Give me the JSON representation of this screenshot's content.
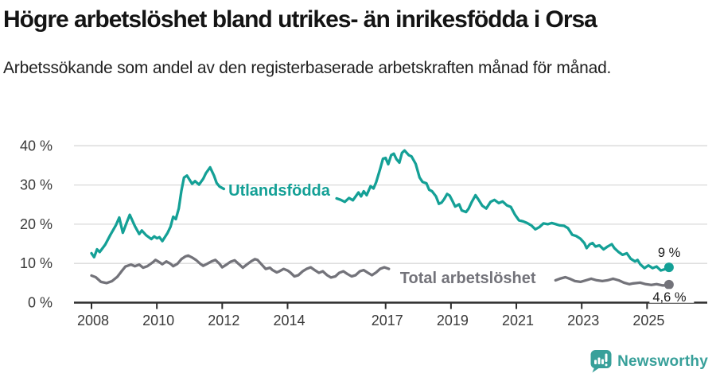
{
  "header": {
    "title": "Högre arbetslöshet bland utrikes- än inrikesfödda i Orsa",
    "subtitle": "Arbetssökande som andel av den registerbaserade arbetskraften månad för månad."
  },
  "chart_data": {
    "type": "line",
    "title": "Högre arbetslöshet bland utrikes- än inrikesfödda i Orsa",
    "subtitle": "Arbetssökande som andel av den registerbaserade arbetskraften månad för månad.",
    "unit": "%",
    "grid": true,
    "legend_position": "inline-line-labels",
    "xlim": [
      2007.5,
      2026.3
    ],
    "ylim": [
      0,
      42
    ],
    "x_ticks": [
      {
        "year": 2008,
        "label": "2008"
      },
      {
        "year": 2010,
        "label": "2010"
      },
      {
        "year": 2012,
        "label": "2012"
      },
      {
        "year": 2014,
        "label": "2014"
      },
      {
        "year": 2017,
        "label": "2017"
      },
      {
        "year": 2019,
        "label": "2019"
      },
      {
        "year": 2021,
        "label": "2021"
      },
      {
        "year": 2023,
        "label": "2023"
      },
      {
        "year": 2025,
        "label": "2025"
      }
    ],
    "y_ticks": [
      {
        "value": 0,
        "label": "0 %"
      },
      {
        "value": 10,
        "label": "10 %"
      },
      {
        "value": 20,
        "label": "20 %"
      },
      {
        "value": 30,
        "label": "30 %"
      },
      {
        "value": 40,
        "label": "40 %"
      }
    ],
    "colors": {
      "foreign_born": "#14a096",
      "total": "#73737a",
      "axis": "#2d2d2d",
      "gridline": "#d9d9d9",
      "annotation": "#1a1a1a"
    },
    "series": [
      {
        "id": "utlandsfodda",
        "name": "Utlandsfödda",
        "color": "#14a096",
        "line_label": {
          "text": "Utlandsfödda",
          "year": 2012.19,
          "value": 27.3
        },
        "end_label": {
          "text": "9 %",
          "year": 2025.33,
          "value": 11.7,
          "bg": false
        },
        "end_dot": true,
        "segments": [
          [
            [
              2008.0,
              12.6
            ],
            [
              2008.08,
              11.6
            ],
            [
              2008.17,
              13.6
            ],
            [
              2008.25,
              12.9
            ],
            [
              2008.42,
              14.8
            ],
            [
              2008.58,
              17.3
            ],
            [
              2008.75,
              19.8
            ],
            [
              2008.85,
              21.7
            ],
            [
              2008.96,
              17.8
            ],
            [
              2009.08,
              20.5
            ],
            [
              2009.17,
              22.4
            ],
            [
              2009.33,
              19.5
            ],
            [
              2009.46,
              17.5
            ],
            [
              2009.54,
              18.4
            ],
            [
              2009.67,
              17.2
            ],
            [
              2009.83,
              16.2
            ],
            [
              2009.92,
              16.9
            ],
            [
              2010.0,
              16.4
            ],
            [
              2010.08,
              16.7
            ],
            [
              2010.17,
              15.7
            ],
            [
              2010.33,
              17.8
            ],
            [
              2010.42,
              19.4
            ],
            [
              2010.5,
              21.9
            ],
            [
              2010.58,
              21.3
            ],
            [
              2010.67,
              24.0
            ],
            [
              2010.75,
              28.5
            ],
            [
              2010.83,
              31.9
            ],
            [
              2010.92,
              32.4
            ],
            [
              2011.08,
              30.3
            ],
            [
              2011.17,
              31.0
            ],
            [
              2011.29,
              30.1
            ],
            [
              2011.42,
              31.6
            ],
            [
              2011.5,
              33.0
            ],
            [
              2011.63,
              34.5
            ],
            [
              2011.75,
              32.4
            ],
            [
              2011.83,
              30.5
            ],
            [
              2011.92,
              29.6
            ],
            [
              2012.05,
              29.0
            ]
          ],
          [
            [
              2015.5,
              26.6
            ],
            [
              2015.63,
              26.2
            ],
            [
              2015.75,
              25.7
            ],
            [
              2015.88,
              26.7
            ],
            [
              2016.0,
              26.1
            ],
            [
              2016.17,
              28.1
            ],
            [
              2016.25,
              27.1
            ],
            [
              2016.33,
              28.4
            ],
            [
              2016.42,
              27.4
            ],
            [
              2016.54,
              29.7
            ],
            [
              2016.63,
              29.1
            ],
            [
              2016.71,
              30.7
            ],
            [
              2016.83,
              34.0
            ],
            [
              2016.92,
              36.7
            ],
            [
              2017.0,
              36.9
            ],
            [
              2017.08,
              35.3
            ],
            [
              2017.17,
              37.6
            ],
            [
              2017.25,
              38.0
            ],
            [
              2017.33,
              36.6
            ],
            [
              2017.42,
              35.7
            ],
            [
              2017.5,
              38.2
            ],
            [
              2017.58,
              38.8
            ],
            [
              2017.71,
              37.6
            ],
            [
              2017.79,
              37.3
            ],
            [
              2017.92,
              35.4
            ],
            [
              2018.04,
              31.9
            ],
            [
              2018.13,
              30.8
            ],
            [
              2018.25,
              30.4
            ],
            [
              2018.33,
              28.8
            ],
            [
              2018.42,
              28.4
            ],
            [
              2018.54,
              27.1
            ],
            [
              2018.63,
              25.2
            ],
            [
              2018.71,
              25.5
            ],
            [
              2018.79,
              26.4
            ],
            [
              2018.88,
              27.7
            ],
            [
              2018.96,
              27.3
            ],
            [
              2019.04,
              26.0
            ],
            [
              2019.13,
              24.5
            ],
            [
              2019.25,
              25.1
            ],
            [
              2019.33,
              23.5
            ],
            [
              2019.46,
              23.1
            ],
            [
              2019.54,
              24.0
            ],
            [
              2019.63,
              25.6
            ],
            [
              2019.75,
              27.4
            ],
            [
              2019.83,
              26.4
            ],
            [
              2019.96,
              24.7
            ],
            [
              2020.08,
              24.0
            ],
            [
              2020.21,
              25.7
            ],
            [
              2020.33,
              26.2
            ],
            [
              2020.46,
              25.4
            ],
            [
              2020.58,
              25.8
            ],
            [
              2020.71,
              24.8
            ],
            [
              2020.83,
              24.4
            ],
            [
              2020.96,
              22.4
            ],
            [
              2021.08,
              21.0
            ],
            [
              2021.21,
              20.7
            ],
            [
              2021.33,
              20.3
            ],
            [
              2021.46,
              19.7
            ],
            [
              2021.58,
              18.7
            ],
            [
              2021.71,
              19.3
            ],
            [
              2021.83,
              20.2
            ],
            [
              2021.96,
              20.0
            ],
            [
              2022.08,
              20.3
            ],
            [
              2022.21,
              20.0
            ],
            [
              2022.33,
              19.7
            ],
            [
              2022.46,
              19.6
            ],
            [
              2022.58,
              19.0
            ],
            [
              2022.71,
              17.3
            ],
            [
              2022.83,
              17.0
            ],
            [
              2022.96,
              16.3
            ],
            [
              2023.08,
              15.2
            ],
            [
              2023.15,
              13.9
            ],
            [
              2023.25,
              14.9
            ],
            [
              2023.33,
              15.2
            ],
            [
              2023.42,
              14.3
            ],
            [
              2023.54,
              14.6
            ],
            [
              2023.67,
              13.6
            ],
            [
              2023.79,
              14.3
            ],
            [
              2023.92,
              14.9
            ],
            [
              2024.0,
              13.9
            ],
            [
              2024.13,
              12.9
            ],
            [
              2024.25,
              12.2
            ],
            [
              2024.38,
              12.6
            ],
            [
              2024.5,
              11.2
            ],
            [
              2024.63,
              10.5
            ],
            [
              2024.71,
              10.9
            ],
            [
              2024.79,
              9.8
            ],
            [
              2024.92,
              8.8
            ],
            [
              2025.04,
              9.5
            ],
            [
              2025.17,
              8.8
            ],
            [
              2025.29,
              9.2
            ],
            [
              2025.42,
              8.2
            ],
            [
              2025.54,
              8.5
            ],
            [
              2025.67,
              9.0
            ]
          ]
        ]
      },
      {
        "id": "total-arbetsloshet",
        "name": "Total arbetslöshet",
        "color": "#73737a",
        "line_label": {
          "text": "Total arbetslöshet",
          "year": 2017.44,
          "value": 5.0
        },
        "end_label": {
          "text": "4,6 %",
          "year": 2025.17,
          "value": 0.35,
          "bg": true
        },
        "end_dot": true,
        "segments": [
          [
            [
              2008.0,
              6.9
            ],
            [
              2008.13,
              6.5
            ],
            [
              2008.29,
              5.3
            ],
            [
              2008.46,
              5.0
            ],
            [
              2008.63,
              5.5
            ],
            [
              2008.79,
              6.6
            ],
            [
              2008.92,
              8.0
            ],
            [
              2009.04,
              9.2
            ],
            [
              2009.21,
              9.7
            ],
            [
              2009.33,
              9.3
            ],
            [
              2009.46,
              9.7
            ],
            [
              2009.58,
              8.9
            ],
            [
              2009.71,
              9.3
            ],
            [
              2009.88,
              10.3
            ],
            [
              2009.96,
              10.9
            ],
            [
              2010.08,
              10.3
            ],
            [
              2010.17,
              9.8
            ],
            [
              2010.29,
              10.5
            ],
            [
              2010.42,
              9.9
            ],
            [
              2010.5,
              9.3
            ],
            [
              2010.63,
              9.9
            ],
            [
              2010.75,
              11.1
            ],
            [
              2010.88,
              11.8
            ],
            [
              2010.96,
              12.0
            ],
            [
              2011.08,
              11.5
            ],
            [
              2011.21,
              10.8
            ],
            [
              2011.33,
              9.9
            ],
            [
              2011.42,
              9.4
            ],
            [
              2011.54,
              9.9
            ],
            [
              2011.67,
              10.5
            ],
            [
              2011.79,
              10.9
            ],
            [
              2011.92,
              9.9
            ],
            [
              2012.0,
              9.0
            ],
            [
              2012.13,
              9.7
            ],
            [
              2012.25,
              10.4
            ],
            [
              2012.38,
              10.8
            ],
            [
              2012.5,
              9.9
            ],
            [
              2012.63,
              8.9
            ],
            [
              2012.75,
              9.7
            ],
            [
              2012.88,
              10.5
            ],
            [
              2013.0,
              11.1
            ],
            [
              2013.08,
              10.9
            ],
            [
              2013.21,
              9.7
            ],
            [
              2013.33,
              8.6
            ],
            [
              2013.46,
              8.9
            ],
            [
              2013.54,
              8.3
            ],
            [
              2013.67,
              7.7
            ],
            [
              2013.75,
              8.0
            ],
            [
              2013.88,
              8.6
            ],
            [
              2014.0,
              8.2
            ],
            [
              2014.08,
              7.7
            ],
            [
              2014.21,
              6.7
            ],
            [
              2014.33,
              7.0
            ],
            [
              2014.46,
              8.0
            ],
            [
              2014.58,
              8.6
            ],
            [
              2014.71,
              9.0
            ],
            [
              2014.83,
              8.3
            ],
            [
              2014.96,
              7.6
            ],
            [
              2015.08,
              8.0
            ],
            [
              2015.21,
              7.0
            ],
            [
              2015.33,
              6.4
            ],
            [
              2015.46,
              6.7
            ],
            [
              2015.58,
              7.6
            ],
            [
              2015.71,
              8.0
            ],
            [
              2015.83,
              7.3
            ],
            [
              2015.96,
              6.7
            ],
            [
              2016.08,
              7.0
            ],
            [
              2016.21,
              8.0
            ],
            [
              2016.33,
              8.3
            ],
            [
              2016.46,
              7.6
            ],
            [
              2016.58,
              7.0
            ],
            [
              2016.71,
              7.7
            ],
            [
              2016.83,
              8.6
            ],
            [
              2016.96,
              9.0
            ],
            [
              2017.1,
              8.6
            ]
          ],
          [
            [
              2022.2,
              5.7
            ],
            [
              2022.33,
              6.1
            ],
            [
              2022.5,
              6.5
            ],
            [
              2022.63,
              6.1
            ],
            [
              2022.79,
              5.5
            ],
            [
              2022.96,
              5.3
            ],
            [
              2023.13,
              5.7
            ],
            [
              2023.29,
              6.1
            ],
            [
              2023.46,
              5.7
            ],
            [
              2023.63,
              5.5
            ],
            [
              2023.79,
              5.7
            ],
            [
              2023.96,
              6.1
            ],
            [
              2024.13,
              5.7
            ],
            [
              2024.29,
              5.1
            ],
            [
              2024.46,
              4.7
            ],
            [
              2024.58,
              4.9
            ],
            [
              2024.79,
              5.1
            ],
            [
              2024.96,
              4.7
            ],
            [
              2025.13,
              4.5
            ],
            [
              2025.29,
              4.7
            ],
            [
              2025.46,
              4.4
            ],
            [
              2025.58,
              4.4
            ],
            [
              2025.67,
              4.6
            ]
          ]
        ]
      }
    ]
  },
  "footer": {
    "brand": "Newsworthy"
  }
}
